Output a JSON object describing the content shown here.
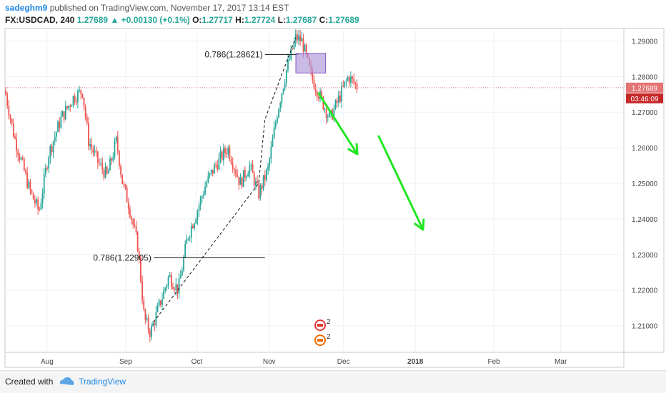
{
  "header": {
    "user": "sadeghm9",
    "published": "published on TradingView.com, November 17, 2017 13:14 EST",
    "symbol": "FX:USDCAD, 240",
    "last": "1.27689",
    "change": "+0.00130 (+0.1%)",
    "o_label": "O:",
    "o_value": "1.27717",
    "h_label": "H:",
    "h_value": "1.27724",
    "l_label": "L:",
    "l_value": "1.27687",
    "c_label": "C:",
    "c_value": "1.27689"
  },
  "footer": {
    "created_with": "Created with",
    "brand": "TradingView"
  },
  "colors": {
    "up": "#26a69a",
    "down": "#ef5350",
    "arrow": "#22e622",
    "box": "#b39ddb",
    "price_tag": "#e57373",
    "countdown_tag": "#c62828"
  },
  "chart_data": {
    "type": "candlestick",
    "ylim": [
      1.2025,
      1.2935
    ],
    "y_ticks": [
      "1.29000",
      "1.28000",
      "1.27000",
      "1.26000",
      "1.25000",
      "1.24000",
      "1.23000",
      "1.22000",
      "1.21000"
    ],
    "x_ticks": [
      "Aug",
      "Sep",
      "Oct",
      "Nov",
      "Dec",
      "2018",
      "Feb",
      "Mar"
    ],
    "last_price": "1.27689",
    "countdown": "03:46:09",
    "fib_upper_label": "0.786(1.28621)",
    "fib_lower_label": "0.786(1.22905)",
    "fib_upper": 1.28621,
    "fib_lower": 1.22905,
    "event_count_1": "2",
    "event_count_2": "2",
    "price_path": [
      [
        0.0,
        1.276
      ],
      [
        0.015,
        1.263
      ],
      [
        0.04,
        1.248
      ],
      [
        0.055,
        1.242
      ],
      [
        0.07,
        1.258
      ],
      [
        0.09,
        1.268
      ],
      [
        0.11,
        1.274
      ],
      [
        0.125,
        1.276
      ],
      [
        0.135,
        1.262
      ],
      [
        0.15,
        1.256
      ],
      [
        0.165,
        1.252
      ],
      [
        0.18,
        1.262
      ],
      [
        0.19,
        1.25
      ],
      [
        0.2,
        1.244
      ],
      [
        0.215,
        1.232
      ],
      [
        0.225,
        1.212
      ],
      [
        0.235,
        1.208
      ],
      [
        0.25,
        1.216
      ],
      [
        0.265,
        1.224
      ],
      [
        0.28,
        1.22
      ],
      [
        0.295,
        1.235
      ],
      [
        0.31,
        1.242
      ],
      [
        0.325,
        1.25
      ],
      [
        0.34,
        1.255
      ],
      [
        0.36,
        1.26
      ],
      [
        0.38,
        1.25
      ],
      [
        0.395,
        1.255
      ],
      [
        0.41,
        1.247
      ],
      [
        0.425,
        1.254
      ],
      [
        0.44,
        1.27
      ],
      [
        0.455,
        1.282
      ],
      [
        0.47,
        1.291
      ],
      [
        0.48,
        1.29
      ],
      [
        0.495,
        1.28
      ],
      [
        0.51,
        1.274
      ],
      [
        0.525,
        1.268
      ],
      [
        0.54,
        1.274
      ],
      [
        0.555,
        1.28
      ],
      [
        0.57,
        1.2769
      ]
    ]
  }
}
